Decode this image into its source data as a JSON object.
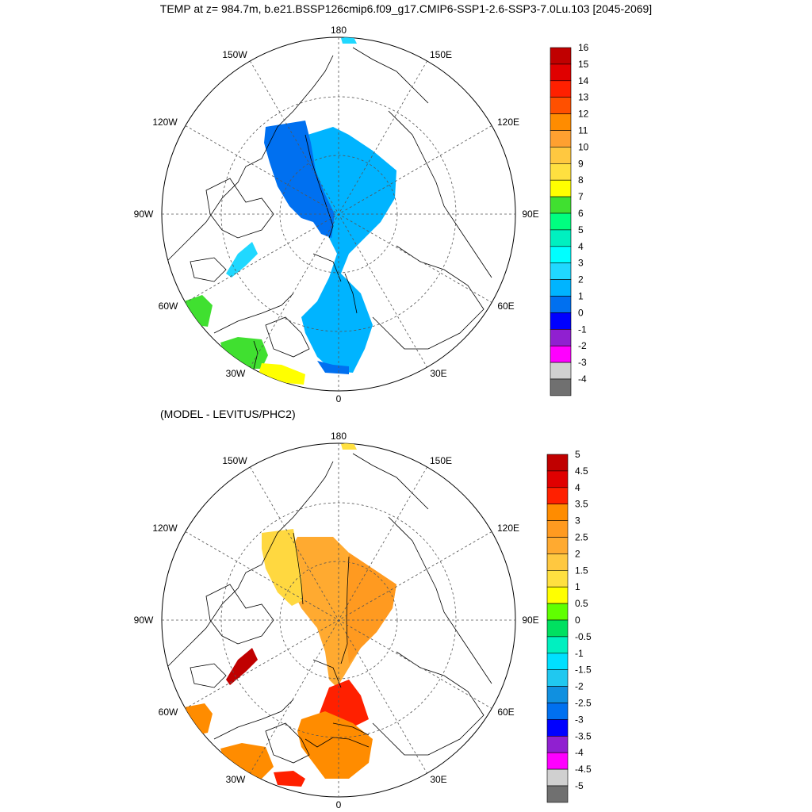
{
  "title": "TEMP at z= 984.7m, b.e21.BSSP126cmip6.f09_g17.CMIP6-SSP1-2.6-SSP3-7.0Lu.103 [2045-2069]",
  "subtitle": "(MODEL - LEVITUS/PHC2)",
  "lon_labels": {
    "l180": "180",
    "l150W": "150W",
    "l150E": "150E",
    "l120W": "120W",
    "l120E": "120E",
    "l90W": "90W",
    "l90E": "90E",
    "l60W": "60W",
    "l60E": "60E",
    "l30W": "30W",
    "l30E": "30E",
    "l0": "0"
  },
  "top_colorbar": {
    "labels": [
      "16",
      "15",
      "14",
      "13",
      "12",
      "11",
      "10",
      "9",
      "8",
      "7",
      "6",
      "5",
      "4",
      "3",
      "2",
      "1",
      "0",
      "-1",
      "-2",
      "-3",
      "-4"
    ],
    "colors": [
      "#c00000",
      "#e00000",
      "#ff2000",
      "#ff5000",
      "#ff8c00",
      "#ffa030",
      "#ffc840",
      "#ffe040",
      "#ffff00",
      "#40e030",
      "#00ff80",
      "#00f0c0",
      "#00ffff",
      "#20d8ff",
      "#00b4ff",
      "#0070f0",
      "#0000ff",
      "#9020d0",
      "#ff00ff",
      "#d0d0d0",
      "#707070"
    ]
  },
  "bottom_colorbar": {
    "labels": [
      "5",
      "4.5",
      "4",
      "3.5",
      "3",
      "2.5",
      "2",
      "1.5",
      "1",
      "0.5",
      "0",
      "-0.5",
      "-1",
      "-1.5",
      "-2",
      "-2.5",
      "-3",
      "-3.5",
      "-4",
      "-4.5",
      "-5"
    ],
    "colors": [
      "#c00000",
      "#e00000",
      "#ff2000",
      "#ff8c00",
      "#ff9a20",
      "#ffaa30",
      "#ffc840",
      "#ffe040",
      "#ffff00",
      "#60ff00",
      "#00e060",
      "#00f0c0",
      "#00e0ff",
      "#20c8f0",
      "#1090e0",
      "#0070f0",
      "#0000ff",
      "#9020d0",
      "#ff00ff",
      "#d0d0d0",
      "#707070"
    ]
  },
  "colors": {
    "top_main": "#00b4ff",
    "top_deep": "#0070f0",
    "top_cyan": "#20d8ff",
    "top_green": "#40e030",
    "top_yellow": "#ffff00",
    "bot_orange": "#ffaa30",
    "bot_darkorange": "#ff8c00",
    "bot_yellow": "#ffd840",
    "bot_red": "#ff2000",
    "bot_darkred": "#c00000"
  }
}
